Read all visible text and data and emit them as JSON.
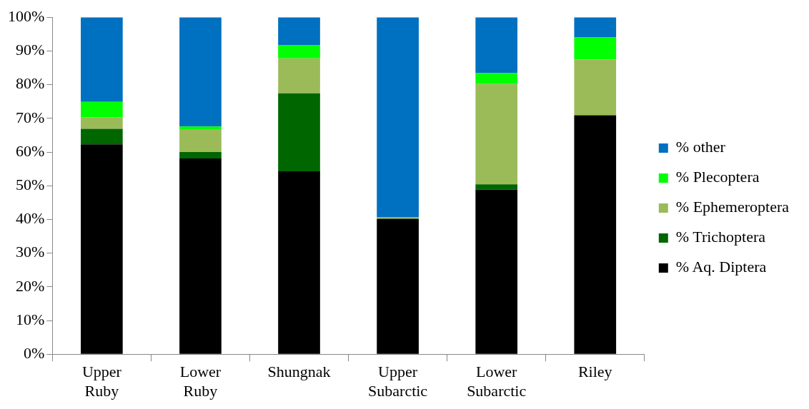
{
  "chart_data": {
    "type": "bar",
    "stacked": true,
    "categories": [
      "Upper Ruby",
      "Lower Ruby",
      "Shungnak",
      "Upper Subarctic",
      "Lower Subarctic",
      "Riley"
    ],
    "series": [
      {
        "name": "% Aq. Diptera",
        "color": "#000000",
        "values": [
          62.3,
          58.1,
          54.3,
          40.2,
          48.8,
          70.9
        ]
      },
      {
        "name": "% Trichoptera",
        "color": "#006600",
        "values": [
          4.6,
          1.9,
          23.1,
          0,
          1.6,
          0
        ]
      },
      {
        "name": "% Ephemeroptera",
        "color": "#9bbb59",
        "values": [
          3.4,
          6.8,
          10.4,
          0.5,
          29.8,
          16.6
        ]
      },
      {
        "name": "% Plecoptera",
        "color": "#00ff00",
        "values": [
          4.6,
          0.8,
          3.9,
          0,
          3.2,
          6.5
        ]
      },
      {
        "name": "% other",
        "color": "#0070c0",
        "values": [
          25.1,
          32.4,
          8.3,
          59.3,
          16.6,
          6.0
        ]
      }
    ],
    "ylim": [
      0,
      100
    ],
    "yticks": [
      {
        "value": 0,
        "label": "0%"
      },
      {
        "value": 10,
        "label": "10%"
      },
      {
        "value": 20,
        "label": "20%"
      },
      {
        "value": 30,
        "label": "30%"
      },
      {
        "value": 40,
        "label": "40%"
      },
      {
        "value": 50,
        "label": "50%"
      },
      {
        "value": 60,
        "label": "60%"
      },
      {
        "value": 70,
        "label": "70%"
      },
      {
        "value": 80,
        "label": "80%"
      },
      {
        "value": 90,
        "label": "90%"
      },
      {
        "value": 100,
        "label": "100%"
      }
    ],
    "grid": false,
    "legend": "right"
  }
}
